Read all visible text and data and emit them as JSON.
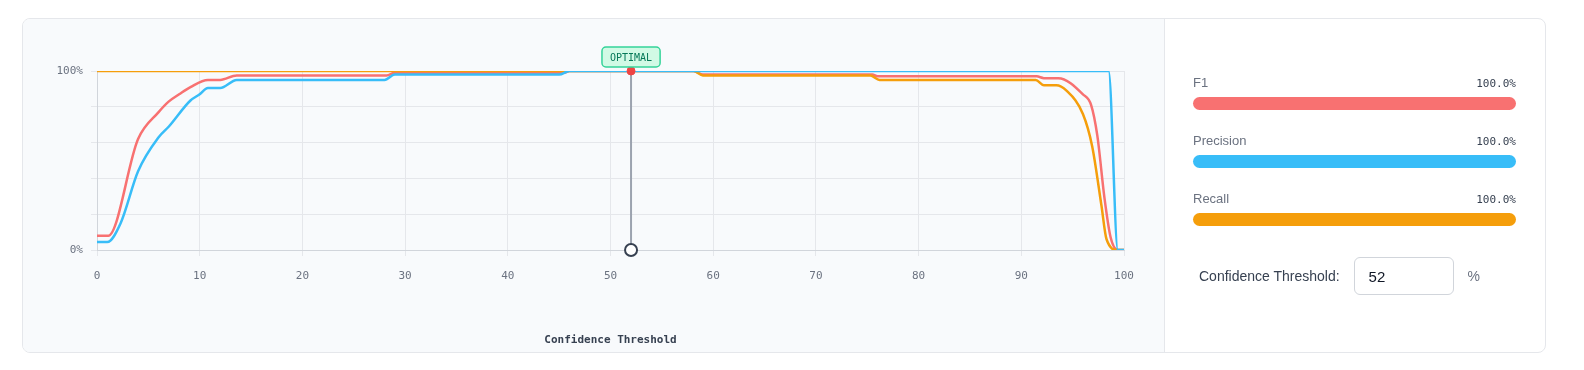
{
  "chart_data": {
    "type": "line",
    "xlabel": "Confidence Threshold",
    "xlim": [
      0,
      100
    ],
    "xticks": [
      0,
      10,
      20,
      30,
      40,
      50,
      60,
      70,
      80,
      90,
      100
    ],
    "ylim": [
      0,
      100
    ],
    "yticks": [
      {
        "value": 0,
        "label": "0%"
      },
      {
        "value": 20,
        "label": null
      },
      {
        "value": 40,
        "label": null
      },
      {
        "value": 60,
        "label": null
      },
      {
        "value": 80,
        "label": null
      },
      {
        "value": 100,
        "label": "100%"
      }
    ],
    "grid": true,
    "legend": "right",
    "series": [
      {
        "name": "F1",
        "color": "#f87171",
        "x": [
          0,
          1.1,
          4,
          6,
          7,
          8,
          9.1,
          10.8,
          12,
          13.6,
          28.2,
          29,
          45.5,
          46,
          58.1,
          59,
          75.5,
          76,
          91.5,
          92.2,
          93.6,
          96,
          96.8,
          97.4,
          98.1,
          98.7,
          99.4,
          100
        ],
        "values": [
          8,
          8,
          62,
          77,
          83,
          87,
          91,
          95,
          95,
          97.5,
          97.5,
          99,
          99,
          100,
          100,
          98,
          98,
          97,
          97,
          96,
          96,
          87,
          81,
          64,
          29,
          7,
          0,
          0
        ]
      },
      {
        "name": "Precision",
        "color": "#38bdf8",
        "x": [
          0,
          1,
          2.3,
          4,
          6,
          7,
          9.1,
          10,
          10.8,
          12,
          13.6,
          28,
          29,
          45,
          46,
          98.5,
          99.4,
          100
        ],
        "values": [
          4.5,
          4.5,
          15,
          44,
          63,
          69,
          83.5,
          87,
          90.5,
          90.5,
          95,
          95,
          98,
          98,
          100,
          100,
          0,
          0
        ]
      },
      {
        "name": "Recall",
        "color": "#f59e0b",
        "x": [
          0,
          58.1,
          59,
          75.3,
          76.2,
          91.4,
          92.2,
          93.4,
          94.4,
          96,
          96.9,
          97.8,
          98.3,
          99.4,
          100
        ],
        "values": [
          100,
          100,
          97.5,
          97.5,
          95,
          95,
          92,
          92,
          89,
          76,
          58,
          25,
          6,
          0,
          0
        ]
      },
      {
        "type": "scatter",
        "color": "#ef4444",
        "x": [
          52
        ],
        "values": [
          100
        ]
      },
      {
        "type": "scatter",
        "color": "#374151",
        "x": [
          52
        ],
        "values": [
          0
        ]
      }
    ],
    "ref_lines": [
      {
        "axis": "x",
        "value": 52,
        "label": "OPTIMAL",
        "color": "#9ca3af"
      }
    ],
    "annotations": [
      "100.0%",
      "100.0%",
      "100.0%",
      "Confidence Threshold:",
      "52",
      "%"
    ]
  }
}
